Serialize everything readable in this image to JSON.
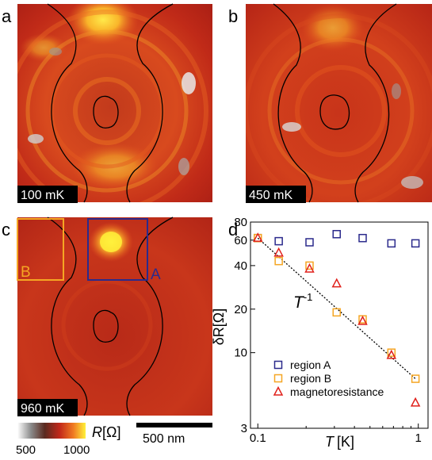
{
  "panels": {
    "a": {
      "letter": "a",
      "temp": "100 mK"
    },
    "b": {
      "letter": "b",
      "temp": "450 mK"
    },
    "c": {
      "letter": "c",
      "temp": "960 mK",
      "region_a_label": "A",
      "region_b_label": "B"
    },
    "d": {
      "letter": "d"
    }
  },
  "colorbar": {
    "label": "R[Ω]",
    "label_symbol": "R",
    "label_unit": "[Ω]",
    "min_label": "500",
    "max_label": "1000"
  },
  "scalebar": {
    "label": "500 nm"
  },
  "colors": {
    "region_A": "#2b2a8c",
    "region_B": "#f5a623",
    "magnetoresistance": "#e0201b",
    "fit_line": "#000000"
  },
  "chart_data": {
    "type": "scatter",
    "xscale": "log",
    "yscale": "log",
    "xlabel": "T [K]",
    "xlabel_symbol": "T",
    "xlabel_unit": "[K]",
    "ylabel": "δR[Ω]",
    "xlim": [
      0.09,
      1.15
    ],
    "ylim": [
      3,
      80
    ],
    "xticks": [
      0.1,
      1
    ],
    "xtick_labels": [
      "0.1",
      "1"
    ],
    "yticks": [
      3,
      10,
      20,
      40,
      60,
      80
    ],
    "ytick_labels": [
      "3",
      "10",
      "20",
      "40",
      "60",
      "80"
    ],
    "annotation": {
      "base": "T",
      "exponent": "-1"
    },
    "legend_position": "bottom-right",
    "series": [
      {
        "name": "region A",
        "marker": "square",
        "color": "#2b2a8c",
        "x": [
          0.1,
          0.135,
          0.21,
          0.31,
          0.45,
          0.68,
          0.96
        ],
        "y": [
          62,
          59,
          58,
          66,
          62,
          57,
          57
        ]
      },
      {
        "name": "region B",
        "marker": "square",
        "color": "#f5a623",
        "x": [
          0.1,
          0.135,
          0.21,
          0.31,
          0.45,
          0.68,
          0.96
        ],
        "y": [
          62,
          43,
          40,
          19,
          17,
          10,
          6.6
        ]
      },
      {
        "name": "magnetoresistance",
        "marker": "triangle",
        "color": "#e0201b",
        "x": [
          0.1,
          0.135,
          0.21,
          0.31,
          0.45,
          0.68,
          0.96
        ],
        "y": [
          62,
          49,
          38,
          30,
          16.5,
          9.6,
          4.5
        ]
      }
    ],
    "fit_line": {
      "x": [
        0.1,
        0.96
      ],
      "y": [
        62,
        6.6
      ]
    }
  }
}
